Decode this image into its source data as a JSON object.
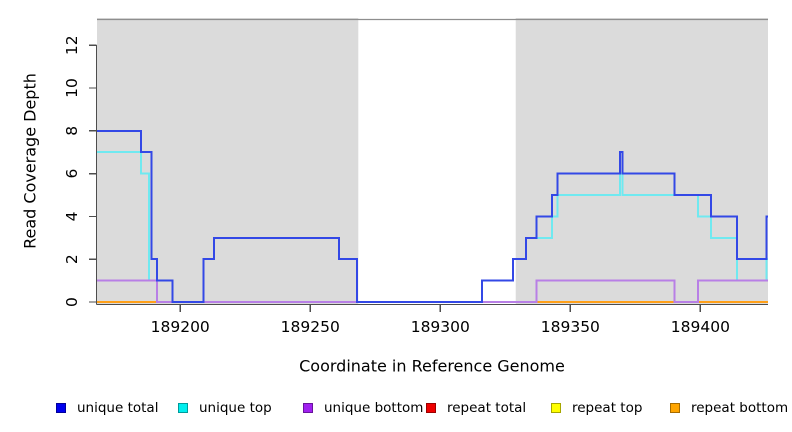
{
  "chart_data": {
    "type": "line",
    "subtype": "step",
    "title": "",
    "xlabel": "Coordinate in Reference Genome",
    "ylabel": "Read Coverage Depth",
    "xlim": [
      189168,
      189426
    ],
    "x_end": 189426,
    "ylim": [
      0,
      13.3
    ],
    "xticks": [
      189200,
      189250,
      189300,
      189350,
      189400
    ],
    "yticks": [
      0,
      2,
      4,
      6,
      8,
      10,
      12
    ],
    "grid": false,
    "legend_position": "bottom",
    "axis_color": "#4D4D4D",
    "region_border_color": "#8E8E8E",
    "background_regions": [
      {
        "name": "covered-left",
        "from": 189168,
        "to": 189268.5,
        "color": "#DBDBDB"
      },
      {
        "name": "gap",
        "from": 189268.5,
        "to": 189329,
        "color": "#FFFFFF"
      },
      {
        "name": "covered-right",
        "from": 189329,
        "to": 189426,
        "color": "#DBDBDB"
      }
    ],
    "draw_order": [
      4,
      3,
      5,
      1,
      2,
      0
    ],
    "series": [
      {
        "name": "unique total",
        "swatch_color": "#0000EE",
        "line_color": "#3348E6",
        "points": [
          [
            189168,
            8
          ],
          [
            189185,
            7
          ],
          [
            189189,
            2
          ],
          [
            189191,
            1
          ],
          [
            189197,
            0
          ],
          [
            189209,
            2
          ],
          [
            189213,
            3
          ],
          [
            189261,
            2
          ],
          [
            189268,
            0
          ],
          [
            189316,
            1
          ],
          [
            189328,
            2
          ],
          [
            189333,
            3
          ],
          [
            189337,
            4
          ],
          [
            189343,
            5
          ],
          [
            189345,
            6
          ],
          [
            189369,
            7
          ],
          [
            189370,
            6
          ],
          [
            189390,
            5
          ],
          [
            189404,
            4
          ],
          [
            189414,
            2
          ],
          [
            189425.5,
            4
          ]
        ]
      },
      {
        "name": "unique top",
        "swatch_color": "#00EEEE",
        "line_color": "#6FE9F0",
        "points": [
          [
            189168,
            7
          ],
          [
            189185,
            6
          ],
          [
            189188,
            1
          ],
          [
            189197,
            0
          ],
          [
            189209,
            2
          ],
          [
            189213,
            3
          ],
          [
            189261,
            2
          ],
          [
            189268,
            0
          ],
          [
            189316,
            1
          ],
          [
            189328,
            2
          ],
          [
            189333,
            3
          ],
          [
            189343,
            4
          ],
          [
            189345,
            5
          ],
          [
            189369,
            6
          ],
          [
            189370,
            5
          ],
          [
            189399,
            4
          ],
          [
            189404,
            3
          ],
          [
            189414,
            1
          ],
          [
            189425.5,
            2
          ]
        ]
      },
      {
        "name": "unique bottom",
        "swatch_color": "#A020F0",
        "line_color": "#B87FE6",
        "points": [
          [
            189168,
            1
          ],
          [
            189191,
            0
          ],
          [
            189337,
            1
          ],
          [
            189390,
            0
          ],
          [
            189399,
            1
          ]
        ]
      },
      {
        "name": "repeat total",
        "swatch_color": "#EE0000",
        "line_color": "#E03030",
        "points": [
          [
            189168,
            0
          ]
        ]
      },
      {
        "name": "repeat top",
        "swatch_color": "#FFFF00",
        "line_color": "#FFFF00",
        "points": [
          [
            189168,
            0
          ]
        ]
      },
      {
        "name": "repeat bottom",
        "swatch_color": "#FFA500",
        "line_color": "#FFA019",
        "points": [
          [
            189168,
            0
          ]
        ]
      }
    ]
  }
}
